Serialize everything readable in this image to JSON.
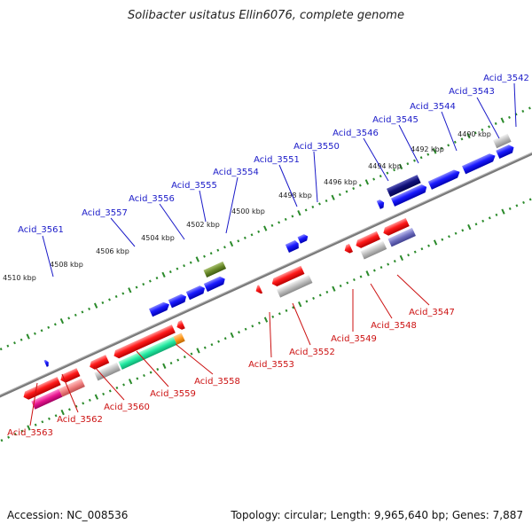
{
  "title": "Solibacter usitatus Ellin6076, complete genome",
  "footer": {
    "accession": "Accession: NC_008536",
    "summary": "Topology: circular; Length: 9,965,640 bp; Genes: 7,887"
  },
  "colors": {
    "backbone": "#808080",
    "forward_label": "#1a1ac8",
    "reverse_label": "#cc1111",
    "tick": "#2a8a2a"
  },
  "tick_labels": [
    "4510 kbp",
    "4508 kbp",
    "4506 kbp",
    "4504 kbp",
    "4502 kbp",
    "4500 kbp",
    "4498 kbp",
    "4496 kbp",
    "4494 kbp",
    "4492 kbp",
    "4490 kbp"
  ],
  "forward_gene_labels": [
    "Acid_3561",
    "Acid_3557",
    "Acid_3556",
    "Acid_3555",
    "Acid_3554",
    "Acid_3551",
    "Acid_3550",
    "Acid_3546",
    "Acid_3545",
    "Acid_3544",
    "Acid_3543",
    "Acid_3542"
  ],
  "reverse_gene_labels": [
    "Acid_3563",
    "Acid_3562",
    "Acid_3560",
    "Acid_3559",
    "Acid_3558",
    "Acid_3553",
    "Acid_3552",
    "Acid_3549",
    "Acid_3548",
    "Acid_3547"
  ]
}
